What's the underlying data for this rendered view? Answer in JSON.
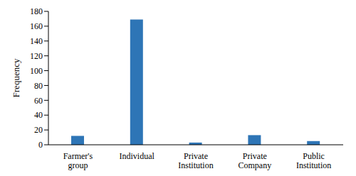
{
  "chart_data": {
    "type": "bar",
    "categories": [
      "Farmer's group",
      "Individual",
      "Private Institution",
      "Private Company",
      "Public Institution"
    ],
    "values": [
      12,
      169,
      3,
      13,
      5
    ],
    "color": "#2e75b6",
    "y_label": "Frequency",
    "ylim": [
      0,
      180
    ],
    "yticks": [
      0,
      20,
      40,
      60,
      80,
      100,
      120,
      140,
      160,
      180
    ],
    "grid": false
  }
}
